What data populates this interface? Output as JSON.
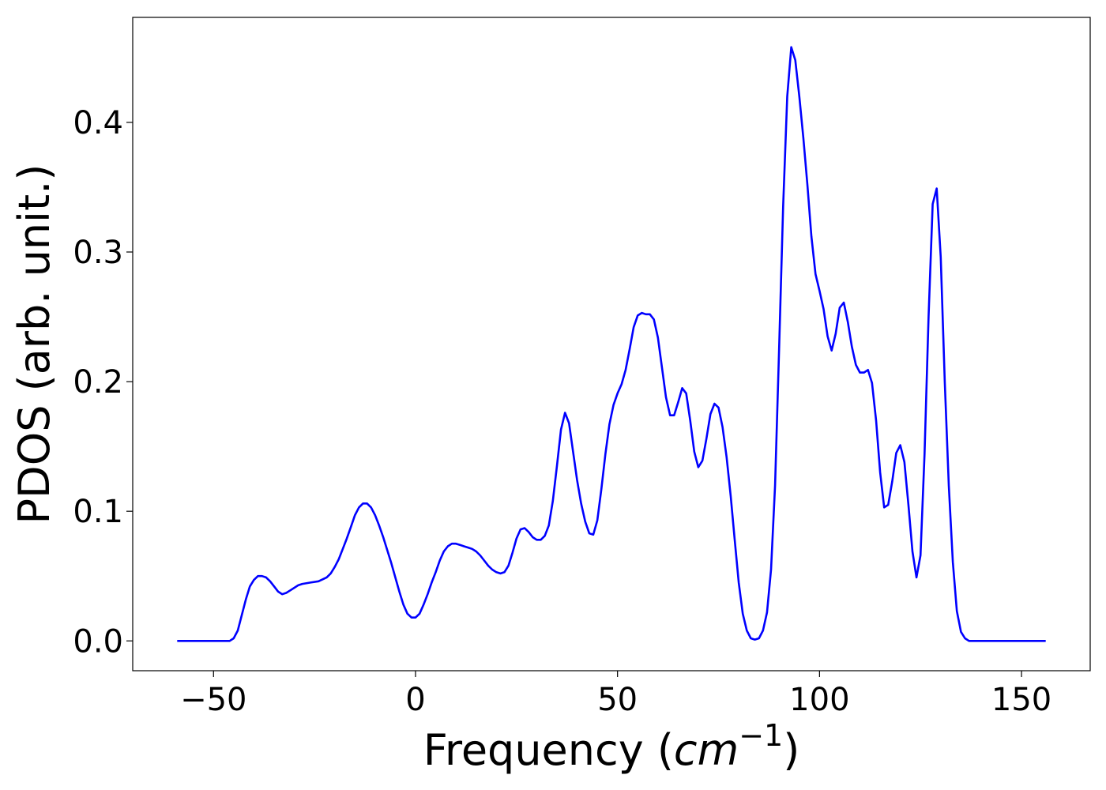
{
  "chart_data": {
    "type": "line",
    "title": "",
    "xlabel": "Frequency (",
    "xlabel_math": "cm",
    "xlabel_exp": "−1",
    "xlabel_close": ")",
    "ylabel": "PDOS (arb. unit.)",
    "xlim": [
      -70,
      167
    ],
    "ylim": [
      -0.023,
      0.481
    ],
    "xticks": [
      -50,
      0,
      50,
      100,
      150
    ],
    "xtick_labels": [
      "−50",
      "0",
      "50",
      "100",
      "150"
    ],
    "yticks": [
      0.0,
      0.1,
      0.2,
      0.3,
      0.4
    ],
    "ytick_labels": [
      "0.0",
      "0.1",
      "0.2",
      "0.3",
      "0.4"
    ],
    "grid": false,
    "series": [
      {
        "color": "#0000ff",
        "points": [
          [
            -59,
            0.0
          ],
          [
            -50,
            0.0
          ],
          [
            -46,
            0.0
          ],
          [
            -45,
            0.002
          ],
          [
            -44,
            0.008
          ],
          [
            -43,
            0.02
          ],
          [
            -42,
            0.032
          ],
          [
            -41,
            0.042
          ],
          [
            -40,
            0.047
          ],
          [
            -39,
            0.05
          ],
          [
            -38,
            0.05
          ],
          [
            -37,
            0.049
          ],
          [
            -36,
            0.046
          ],
          [
            -35,
            0.042
          ],
          [
            -34,
            0.038
          ],
          [
            -33,
            0.036
          ],
          [
            -32,
            0.037
          ],
          [
            -31,
            0.039
          ],
          [
            -30,
            0.041
          ],
          [
            -29,
            0.043
          ],
          [
            -28,
            0.044
          ],
          [
            -26,
            0.045
          ],
          [
            -24,
            0.046
          ],
          [
            -22,
            0.049
          ],
          [
            -21,
            0.052
          ],
          [
            -20,
            0.057
          ],
          [
            -19,
            0.063
          ],
          [
            -18,
            0.071
          ],
          [
            -17,
            0.079
          ],
          [
            -16,
            0.088
          ],
          [
            -15,
            0.097
          ],
          [
            -14,
            0.103
          ],
          [
            -13,
            0.106
          ],
          [
            -12,
            0.106
          ],
          [
            -11,
            0.103
          ],
          [
            -10,
            0.097
          ],
          [
            -9,
            0.089
          ],
          [
            -8,
            0.08
          ],
          [
            -7,
            0.07
          ],
          [
            -6,
            0.06
          ],
          [
            -5,
            0.049
          ],
          [
            -4,
            0.038
          ],
          [
            -3,
            0.028
          ],
          [
            -2,
            0.021
          ],
          [
            -1,
            0.018
          ],
          [
            0,
            0.018
          ],
          [
            1,
            0.021
          ],
          [
            2,
            0.028
          ],
          [
            3,
            0.036
          ],
          [
            4,
            0.045
          ],
          [
            5,
            0.053
          ],
          [
            6,
            0.062
          ],
          [
            7,
            0.069
          ],
          [
            8,
            0.073
          ],
          [
            9,
            0.075
          ],
          [
            10,
            0.075
          ],
          [
            11,
            0.074
          ],
          [
            12,
            0.073
          ],
          [
            13,
            0.072
          ],
          [
            14,
            0.071
          ],
          [
            15,
            0.069
          ],
          [
            16,
            0.066
          ],
          [
            17,
            0.062
          ],
          [
            18,
            0.058
          ],
          [
            19,
            0.055
          ],
          [
            20,
            0.053
          ],
          [
            21,
            0.052
          ],
          [
            22,
            0.053
          ],
          [
            23,
            0.058
          ],
          [
            24,
            0.068
          ],
          [
            25,
            0.079
          ],
          [
            26,
            0.086
          ],
          [
            27,
            0.087
          ],
          [
            28,
            0.084
          ],
          [
            29,
            0.08
          ],
          [
            30,
            0.078
          ],
          [
            31,
            0.078
          ],
          [
            32,
            0.081
          ],
          [
            33,
            0.089
          ],
          [
            34,
            0.108
          ],
          [
            35,
            0.135
          ],
          [
            36,
            0.163
          ],
          [
            37,
            0.176
          ],
          [
            38,
            0.168
          ],
          [
            39,
            0.146
          ],
          [
            40,
            0.124
          ],
          [
            41,
            0.106
          ],
          [
            42,
            0.092
          ],
          [
            43,
            0.083
          ],
          [
            44,
            0.082
          ],
          [
            45,
            0.093
          ],
          [
            46,
            0.117
          ],
          [
            47,
            0.144
          ],
          [
            48,
            0.167
          ],
          [
            49,
            0.182
          ],
          [
            50,
            0.191
          ],
          [
            51,
            0.198
          ],
          [
            52,
            0.209
          ],
          [
            53,
            0.225
          ],
          [
            54,
            0.242
          ],
          [
            55,
            0.251
          ],
          [
            56,
            0.253
          ],
          [
            57,
            0.252
          ],
          [
            58,
            0.252
          ],
          [
            59,
            0.248
          ],
          [
            60,
            0.234
          ],
          [
            61,
            0.211
          ],
          [
            62,
            0.188
          ],
          [
            63,
            0.174
          ],
          [
            64,
            0.174
          ],
          [
            65,
            0.184
          ],
          [
            66,
            0.195
          ],
          [
            67,
            0.191
          ],
          [
            68,
            0.17
          ],
          [
            69,
            0.146
          ],
          [
            70,
            0.134
          ],
          [
            71,
            0.139
          ],
          [
            72,
            0.156
          ],
          [
            73,
            0.175
          ],
          [
            74,
            0.183
          ],
          [
            75,
            0.18
          ],
          [
            76,
            0.165
          ],
          [
            77,
            0.142
          ],
          [
            78,
            0.112
          ],
          [
            79,
            0.078
          ],
          [
            80,
            0.045
          ],
          [
            81,
            0.021
          ],
          [
            82,
            0.008
          ],
          [
            83,
            0.002
          ],
          [
            84,
            0.001
          ],
          [
            85,
            0.002
          ],
          [
            86,
            0.008
          ],
          [
            87,
            0.022
          ],
          [
            88,
            0.055
          ],
          [
            89,
            0.12
          ],
          [
            90,
            0.225
          ],
          [
            91,
            0.335
          ],
          [
            92,
            0.42
          ],
          [
            93,
            0.458
          ],
          [
            94,
            0.448
          ],
          [
            95,
            0.42
          ],
          [
            96,
            0.388
          ],
          [
            97,
            0.352
          ],
          [
            98,
            0.312
          ],
          [
            99,
            0.283
          ],
          [
            100,
            0.27
          ],
          [
            101,
            0.256
          ],
          [
            102,
            0.235
          ],
          [
            103,
            0.224
          ],
          [
            104,
            0.237
          ],
          [
            105,
            0.257
          ],
          [
            106,
            0.261
          ],
          [
            107,
            0.246
          ],
          [
            108,
            0.227
          ],
          [
            109,
            0.213
          ],
          [
            110,
            0.207
          ],
          [
            111,
            0.207
          ],
          [
            112,
            0.209
          ],
          [
            113,
            0.199
          ],
          [
            114,
            0.17
          ],
          [
            115,
            0.13
          ],
          [
            116,
            0.103
          ],
          [
            117,
            0.105
          ],
          [
            118,
            0.123
          ],
          [
            119,
            0.145
          ],
          [
            120,
            0.151
          ],
          [
            121,
            0.138
          ],
          [
            122,
            0.105
          ],
          [
            123,
            0.069
          ],
          [
            124,
            0.049
          ],
          [
            125,
            0.066
          ],
          [
            126,
            0.144
          ],
          [
            127,
            0.25
          ],
          [
            128,
            0.337
          ],
          [
            129,
            0.349
          ],
          [
            130,
            0.296
          ],
          [
            131,
            0.2
          ],
          [
            132,
            0.12
          ],
          [
            133,
            0.061
          ],
          [
            134,
            0.023
          ],
          [
            135,
            0.007
          ],
          [
            136,
            0.002
          ],
          [
            137,
            0.0
          ],
          [
            140,
            0.0
          ],
          [
            150,
            0.0
          ],
          [
            156,
            0.0
          ]
        ]
      }
    ]
  }
}
